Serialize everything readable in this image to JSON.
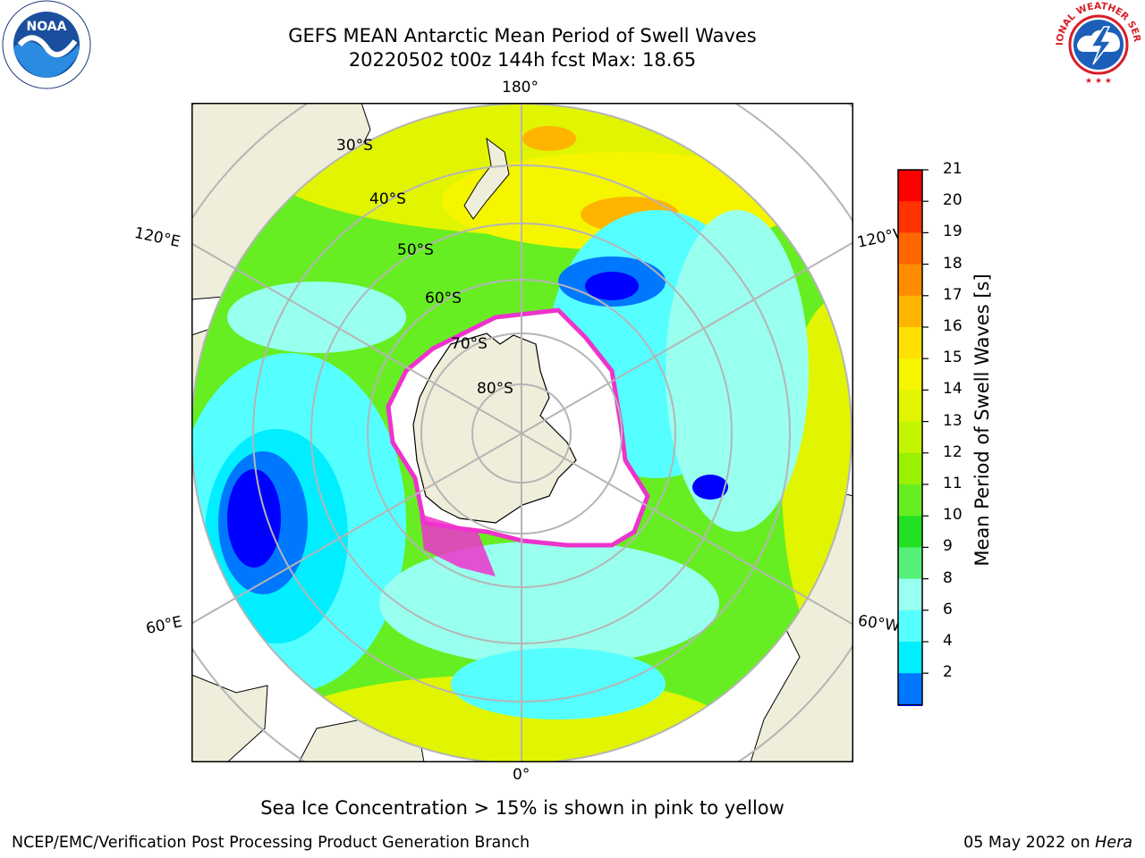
{
  "title": {
    "line1": "GEFS MEAN Antarctic Mean Period of Swell Waves",
    "line2": "20220502 t00z 144h fcst   Max: 18.65"
  },
  "map": {
    "longitude_labels": [
      "180°",
      "120°E",
      "120°W",
      "60°E",
      "60°W",
      "0°"
    ],
    "latitude_labels": [
      "30°S",
      "40°S",
      "50°S",
      "60°S",
      "70°S",
      "80°S"
    ],
    "colors": {
      "land": "#efeedb",
      "ice_edge": "#ee33cc",
      "grid": "#b5b5b5"
    }
  },
  "colorbar": {
    "label": "Mean Period of Swell Waves [s]",
    "ticks": [
      "21",
      "20",
      "19",
      "18",
      "17",
      "16",
      "15",
      "14",
      "13",
      "12",
      "11",
      "10",
      "9",
      "8",
      "6",
      "4",
      "2"
    ],
    "colors": [
      "#ff0000",
      "#ff3300",
      "#ff6600",
      "#ff8c00",
      "#ffb400",
      "#ffe000",
      "#f5f500",
      "#e1f500",
      "#c3f500",
      "#99f000",
      "#66ee22",
      "#22e022",
      "#55f077",
      "#99ffee",
      "#55ffff",
      "#00eeff",
      "#0077ff"
    ],
    "extend_color": "#0000ff"
  },
  "caption": "Sea Ice Concentration > 15% is shown in pink to yellow",
  "footer": {
    "left": "NCEP/EMC/Verification Post Processing Product Generation Branch",
    "right_prefix": "05 May 2022 on ",
    "right_host": "Hera"
  },
  "logos": {
    "noaa": "NOAA",
    "nws": "NATIONAL WEATHER SERVICE"
  }
}
